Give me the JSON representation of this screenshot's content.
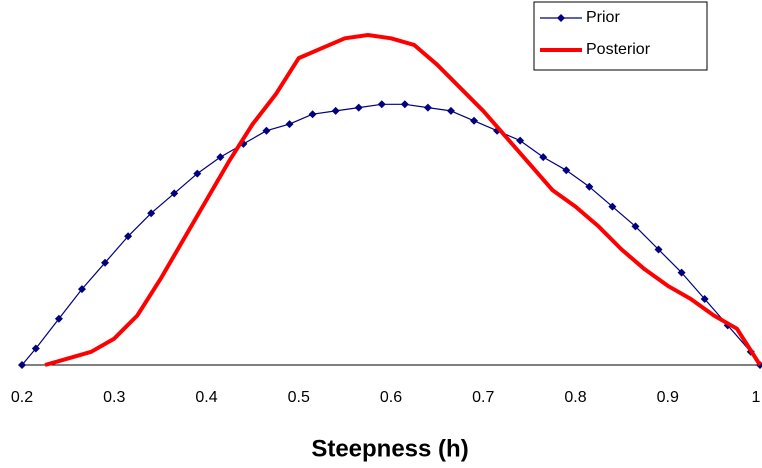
{
  "chart_data": {
    "type": "line",
    "xlabel": "Steepness (h)",
    "xlim": [
      0.2,
      1
    ],
    "xticks": [
      0.2,
      0.3,
      0.4,
      0.5,
      0.6,
      0.7,
      0.8,
      0.9,
      1
    ],
    "ylim": [
      0,
      1
    ],
    "legend": "top-right",
    "series": [
      {
        "name": "Prior",
        "color": "#000080",
        "marker": "diamond",
        "x": [
          0.2,
          0.215,
          0.24,
          0.265,
          0.29,
          0.315,
          0.34,
          0.365,
          0.39,
          0.415,
          0.44,
          0.465,
          0.49,
          0.515,
          0.54,
          0.565,
          0.59,
          0.615,
          0.64,
          0.665,
          0.69,
          0.715,
          0.74,
          0.765,
          0.79,
          0.815,
          0.84,
          0.865,
          0.89,
          0.915,
          0.94,
          0.965,
          0.99,
          1
        ],
        "values": [
          0,
          0.05,
          0.14,
          0.23,
          0.31,
          0.39,
          0.46,
          0.52,
          0.58,
          0.63,
          0.67,
          0.71,
          0.73,
          0.76,
          0.77,
          0.78,
          0.79,
          0.79,
          0.78,
          0.77,
          0.74,
          0.71,
          0.68,
          0.63,
          0.59,
          0.54,
          0.48,
          0.42,
          0.35,
          0.28,
          0.2,
          0.12,
          0.04,
          0
        ]
      },
      {
        "name": "Posterior",
        "color": "#ff0000",
        "x": [
          0.225,
          0.25,
          0.275,
          0.3,
          0.325,
          0.35,
          0.375,
          0.4,
          0.425,
          0.45,
          0.475,
          0.5,
          0.525,
          0.55,
          0.575,
          0.6,
          0.625,
          0.65,
          0.675,
          0.7,
          0.725,
          0.75,
          0.775,
          0.8,
          0.825,
          0.85,
          0.875,
          0.9,
          0.925,
          0.95,
          0.975,
          1
        ],
        "values": [
          0,
          0.02,
          0.04,
          0.08,
          0.15,
          0.26,
          0.38,
          0.5,
          0.62,
          0.73,
          0.82,
          0.93,
          0.96,
          0.99,
          1,
          0.99,
          0.97,
          0.91,
          0.84,
          0.77,
          0.69,
          0.61,
          0.53,
          0.48,
          0.42,
          0.35,
          0.29,
          0.24,
          0.2,
          0.15,
          0.11,
          0
        ]
      }
    ]
  }
}
